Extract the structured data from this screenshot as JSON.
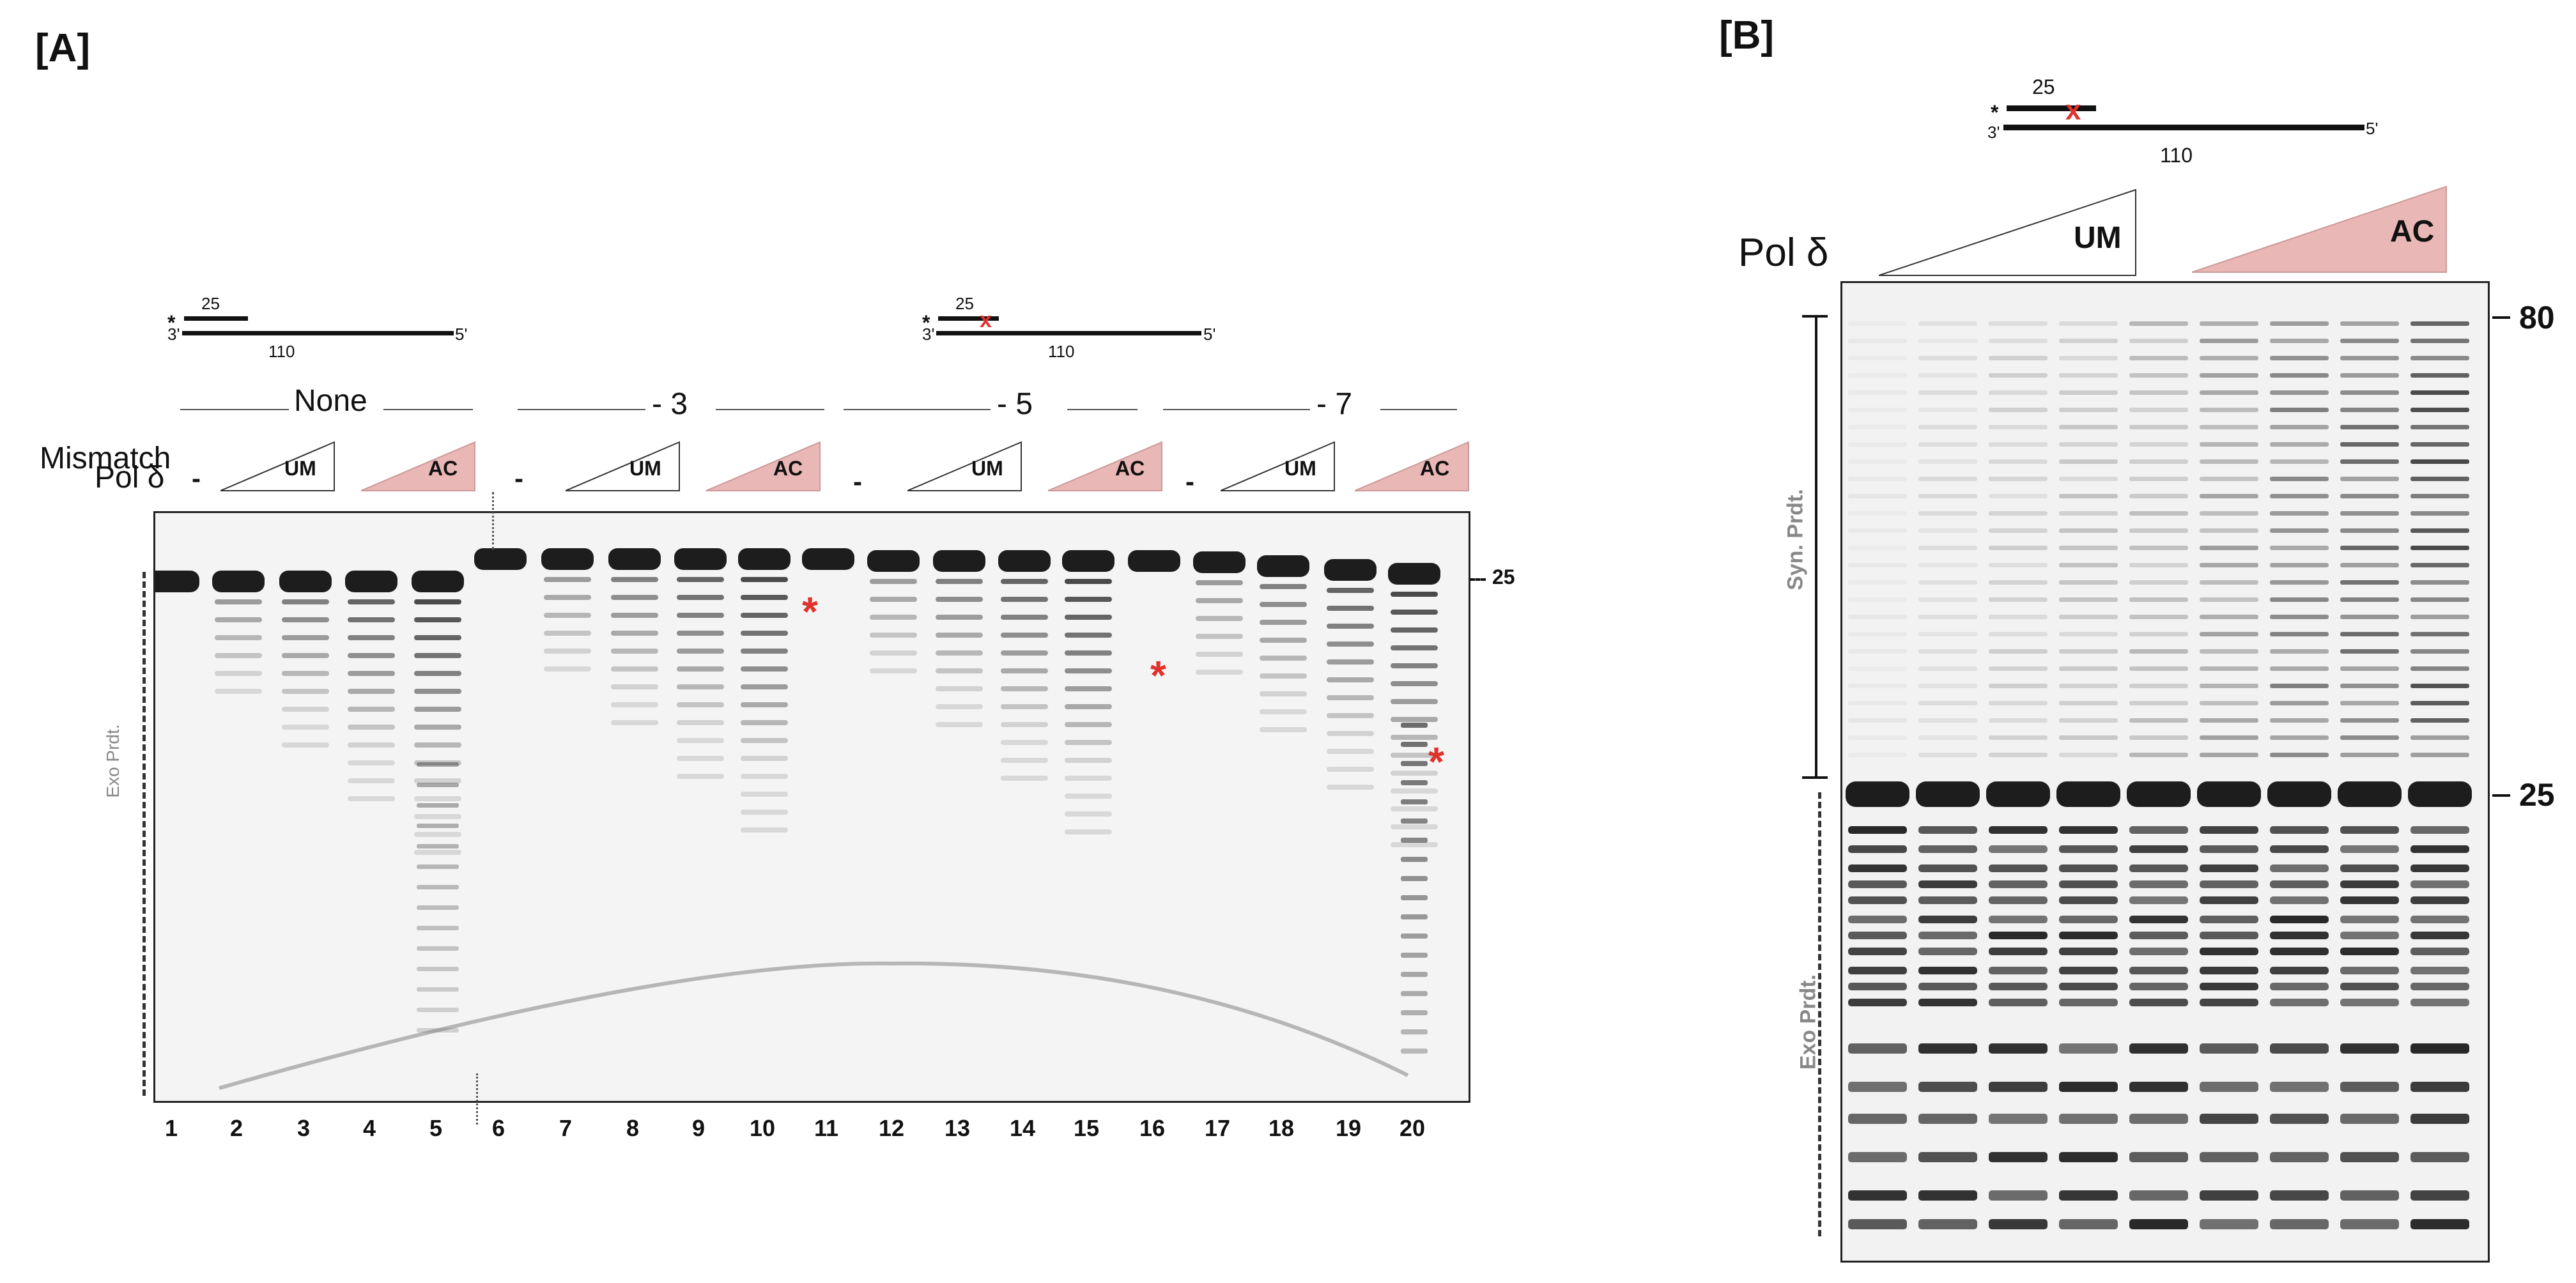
{
  "panel_a": {
    "label": "[A]",
    "substrate_left": {
      "star": "*",
      "top_len": "25",
      "prime3": "3'",
      "prime5": "5'",
      "bottom_len": "110"
    },
    "substrate_right": {
      "star": "*",
      "top_len": "25",
      "mark": "x",
      "prime3": "3'",
      "prime5": "5'",
      "bottom_len": "110"
    },
    "mismatch_label": "Mismatch",
    "mismatch_groups": [
      "None",
      "- 3",
      "- 5",
      "- 7"
    ],
    "pol_label": "Pol δ",
    "minus": "-",
    "um": "UM",
    "ac": "AC",
    "size_marker": "25",
    "exo_label": "Exo Prdt.",
    "asterisk": "*",
    "lanes": [
      "1",
      "2",
      "3",
      "4",
      "5",
      "6",
      "7",
      "8",
      "9",
      "10",
      "11",
      "12",
      "13",
      "14",
      "15",
      "16",
      "17",
      "18",
      "19",
      "20"
    ]
  },
  "panel_b": {
    "label": "[B]",
    "substrate": {
      "star": "*",
      "top_len": "25",
      "mark": "x",
      "prime3": "3'",
      "prime5": "5'",
      "bottom_len": "110"
    },
    "pol_label": "Pol δ",
    "um": "UM",
    "ac": "AC",
    "marker_80": "80",
    "marker_25": "25",
    "syn_label": "Syn. Prdt.",
    "exo_label": "Exo Prdt."
  },
  "colors": {
    "ac_fill": "#e9b7b5",
    "asterisk": "#e0322c",
    "band": "#111111"
  }
}
